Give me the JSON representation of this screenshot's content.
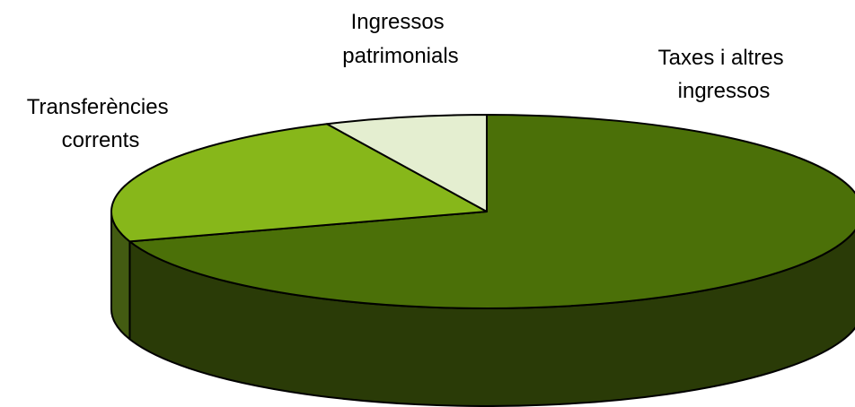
{
  "chart_data": {
    "type": "pie",
    "style": "3d",
    "title": "",
    "slices": [
      {
        "label_lines": [
          "Taxes i altres",
          "ingressos"
        ],
        "value": 70,
        "top_color": "#4b7008",
        "side_color": "#2a3b07"
      },
      {
        "label_lines": [
          "Transferències",
          "corrents"
        ],
        "value": 23,
        "top_color": "#87b71a",
        "side_color": "#435b12"
      },
      {
        "label_lines": [
          "Ingressos",
          "patrimonials"
        ],
        "value": 7,
        "top_color": "#e4eed0",
        "side_color": "#b4c09a"
      }
    ],
    "outline_color": "#000000"
  }
}
